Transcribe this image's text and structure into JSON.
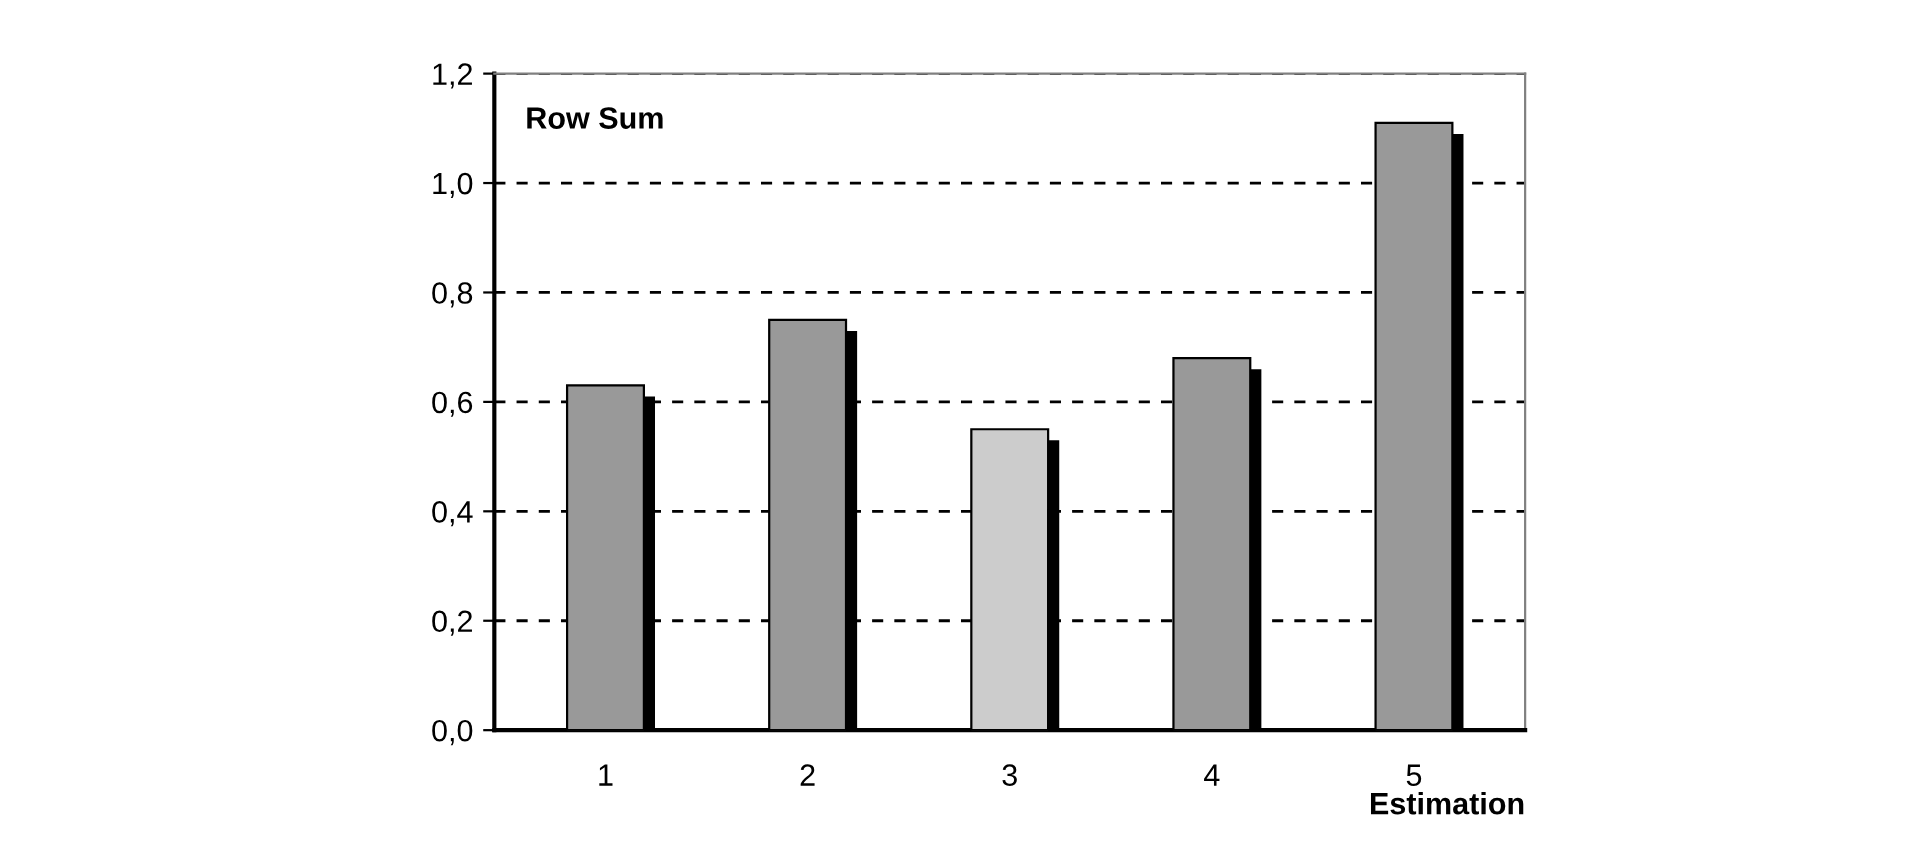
{
  "chart_data": {
    "type": "bar",
    "ylabel": "Row Sum",
    "xlabel": "Estimation",
    "categories": [
      "1",
      "2",
      "3",
      "4",
      "5"
    ],
    "values": [
      0.63,
      0.75,
      0.55,
      0.68,
      1.11
    ],
    "colors": [
      "#999999",
      "#999999",
      "#cccccc",
      "#999999",
      "#999999"
    ],
    "ylim": [
      0,
      1.2
    ],
    "yticks": [
      {
        "value": 0,
        "label": "0,0"
      },
      {
        "value": 0.2,
        "label": "0,2"
      },
      {
        "value": 0.4,
        "label": "0,4"
      },
      {
        "value": 0.6,
        "label": "0,6"
      },
      {
        "value": 0.8,
        "label": "0,8"
      },
      {
        "value": 1.0,
        "label": "1,0"
      },
      {
        "value": 1.2,
        "label": "1,2"
      }
    ],
    "grid": "y",
    "line_style": "dashed"
  }
}
